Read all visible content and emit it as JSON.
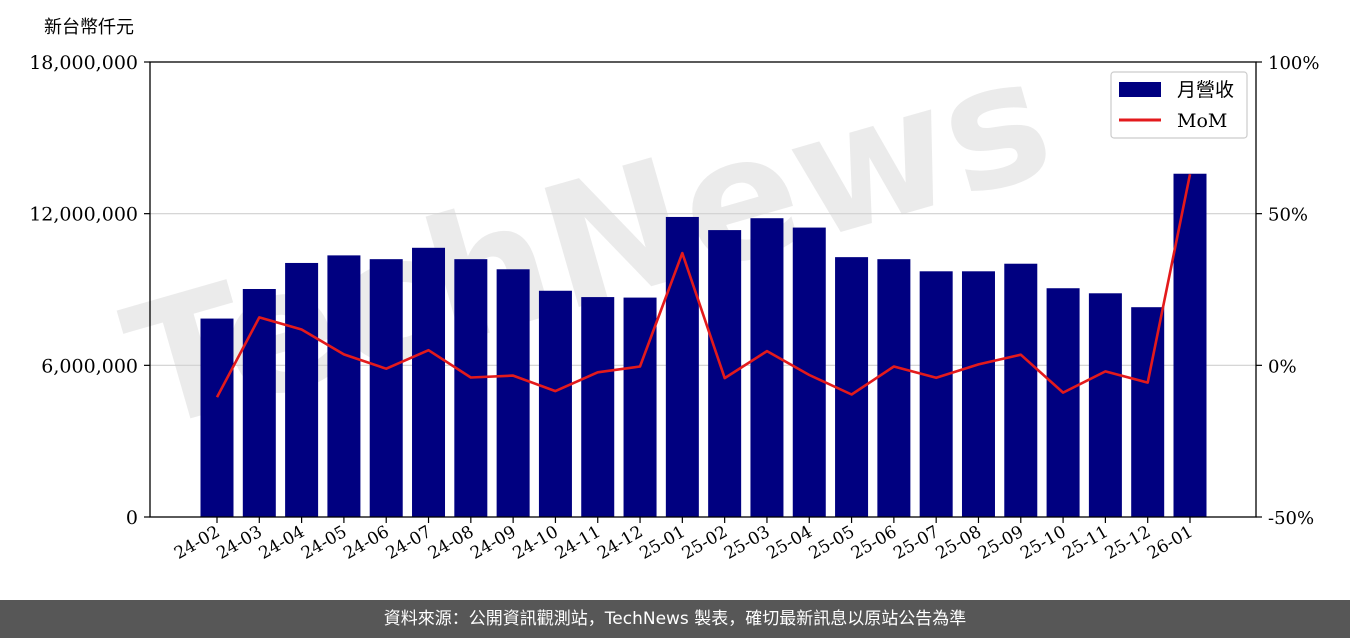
{
  "chart_data": {
    "type": "bar",
    "ylabel": "新台幣仟元",
    "categories": [
      "24-02",
      "24-03",
      "24-04",
      "24-05",
      "24-06",
      "24-07",
      "24-08",
      "24-09",
      "24-10",
      "24-11",
      "24-12",
      "25-01",
      "25-02",
      "25-03",
      "25-04",
      "25-05",
      "25-06",
      "25-07",
      "25-08",
      "25-09",
      "25-10",
      "25-11",
      "25-12",
      "26-01"
    ],
    "series": [
      {
        "name": "月營收",
        "type": "bar",
        "axis": "left",
        "color": "#000080",
        "values": [
          7850000,
          9020000,
          10050000,
          10350000,
          10200000,
          10650000,
          10200000,
          9800000,
          8950000,
          8700000,
          8680000,
          11870000,
          11350000,
          11820000,
          11450000,
          10280000,
          10200000,
          9720000,
          9720000,
          10020000,
          9050000,
          8850000,
          8300000,
          13580000
        ]
      },
      {
        "name": "MoM",
        "type": "line",
        "axis": "right",
        "color": "#e31a1c",
        "values": [
          -10.5,
          15.8,
          11.8,
          3.6,
          -1.1,
          5.0,
          -4.0,
          -3.4,
          -8.5,
          -2.3,
          -0.4,
          37.0,
          -4.2,
          4.7,
          -3.2,
          -9.6,
          -0.4,
          -4.1,
          0.3,
          3.5,
          -9.0,
          -2.0,
          -5.7,
          63.0
        ]
      }
    ],
    "left_axis": {
      "ylim": [
        0,
        18000000
      ],
      "ticks": [
        0,
        6000000,
        12000000,
        18000000
      ],
      "tick_labels": [
        "0",
        "6,000,000",
        "12,000,000",
        "18,000,000"
      ]
    },
    "right_axis": {
      "ylim": [
        -50,
        100
      ],
      "ticks": [
        -50,
        0,
        50,
        100
      ],
      "tick_labels": [
        "-50%",
        "0%",
        "50%",
        "100%"
      ]
    },
    "grid": "horizontal",
    "legend": "top-right",
    "watermark": "TechNews"
  },
  "footer": {
    "text": "資料來源：公開資訊觀測站，TechNews 製表，確切最新訊息以原站公告為準"
  }
}
